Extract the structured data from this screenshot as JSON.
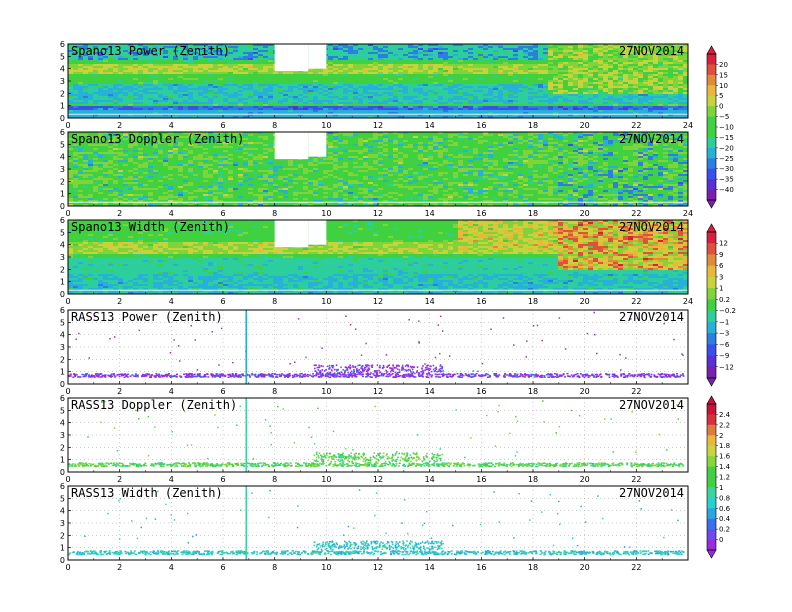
{
  "page": {
    "date": "27NOV2014"
  },
  "colors": {
    "background": "#ffffff",
    "panel_base": "#3fd13f",
    "spano_palette": [
      "#7a1fb0",
      "#5a2fd8",
      "#3b4ff0",
      "#2a7fe0",
      "#27b0d8",
      "#2ccf9c",
      "#3fd13f",
      "#7fd43a",
      "#c8d23a",
      "#e8b83a",
      "#e08a3a",
      "#e0503a",
      "#d8203a"
    ],
    "rass_palette": [
      "#9a2ae0",
      "#6a4bf0",
      "#3b6ff0",
      "#27a8e0",
      "#2acfcf",
      "#3ad59a",
      "#3fd13f",
      "#86d63a",
      "#cbd43a",
      "#e8b83a",
      "#e07a3a",
      "#d8303a",
      "#c8103a"
    ]
  },
  "chart_data": [
    {
      "type": "heatmap",
      "title": "Spano13 Power (Zenith)",
      "date_label": "27NOV2014",
      "x_ticks": [
        "0",
        "2",
        "4",
        "6",
        "8",
        "10",
        "12",
        "14",
        "16",
        "18",
        "20",
        "22",
        "24"
      ],
      "y_ticks": [
        "0",
        "1",
        "2",
        "3",
        "4",
        "5",
        "6"
      ],
      "xlim": [
        0,
        24
      ],
      "ylim": [
        0,
        6
      ],
      "gaps": [
        {
          "x0": 8.0,
          "x1": 9.3,
          "y0": 3.8,
          "y1": 6.0
        },
        {
          "x0": 9.3,
          "x1": 10.0,
          "y0": 4.0,
          "y1": 6.0
        }
      ]
    },
    {
      "type": "heatmap",
      "title": "Spano13 Doppler (Zenith)",
      "date_label": "27NOV2014",
      "x_ticks": [
        "0",
        "2",
        "4",
        "6",
        "8",
        "10",
        "12",
        "14",
        "16",
        "18",
        "20",
        "22",
        "24"
      ],
      "y_ticks": [
        "0",
        "1",
        "2",
        "3",
        "4",
        "5",
        "6"
      ],
      "xlim": [
        0,
        24
      ],
      "ylim": [
        0,
        6
      ],
      "gaps": [
        {
          "x0": 8.0,
          "x1": 9.3,
          "y0": 3.8,
          "y1": 6.0
        },
        {
          "x0": 9.3,
          "x1": 10.0,
          "y0": 4.0,
          "y1": 6.0
        }
      ]
    },
    {
      "type": "heatmap",
      "title": "Spano13 Width (Zenith)",
      "date_label": "27NOV2014",
      "x_ticks": [
        "0",
        "2",
        "4",
        "6",
        "8",
        "10",
        "12",
        "14",
        "16",
        "18",
        "20",
        "22",
        "24"
      ],
      "y_ticks": [
        "0",
        "1",
        "2",
        "3",
        "4",
        "5",
        "6"
      ],
      "xlim": [
        0,
        24
      ],
      "ylim": [
        0,
        6
      ],
      "gaps": [
        {
          "x0": 8.0,
          "x1": 9.3,
          "y0": 3.8,
          "y1": 6.0
        },
        {
          "x0": 9.3,
          "x1": 10.0,
          "y0": 4.0,
          "y1": 6.0
        }
      ]
    },
    {
      "type": "scatter",
      "title": "RASS13 Power (Zenith)",
      "date_label": "27NOV2014",
      "x_ticks": [
        "0",
        "2",
        "4",
        "6",
        "8",
        "10",
        "12",
        "14",
        "16",
        "18",
        "20",
        "22"
      ],
      "y_ticks": [
        "0",
        "1",
        "2",
        "3",
        "4",
        "5",
        "6"
      ],
      "xlim": [
        0,
        24
      ],
      "ylim": [
        0,
        6
      ],
      "band_height": [
        0.6,
        0.9
      ],
      "spike_x": 6.9
    },
    {
      "type": "scatter",
      "title": "RASS13 Doppler (Zenith)",
      "date_label": "27NOV2014",
      "x_ticks": [
        "0",
        "2",
        "4",
        "6",
        "8",
        "10",
        "12",
        "14",
        "16",
        "18",
        "20",
        "22"
      ],
      "y_ticks": [
        "0",
        "1",
        "2",
        "3",
        "4",
        "5",
        "6"
      ],
      "xlim": [
        0,
        24
      ],
      "ylim": [
        0,
        6
      ],
      "band_height": [
        0.5,
        0.8
      ],
      "spike_x": 6.9
    },
    {
      "type": "scatter",
      "title": "RASS13 Width (Zenith)",
      "date_label": "27NOV2014",
      "x_ticks": [
        "0",
        "2",
        "4",
        "6",
        "8",
        "10",
        "12",
        "14",
        "16",
        "18",
        "20",
        "22"
      ],
      "y_ticks": [
        "0",
        "1",
        "2",
        "3",
        "4",
        "5",
        "6"
      ],
      "xlim": [
        0,
        24
      ],
      "ylim": [
        0,
        6
      ],
      "band_height": [
        0.5,
        0.8
      ],
      "spike_x": 6.9
    }
  ],
  "colorbars": [
    {
      "name": "spano-colorbar",
      "labels": [
        "20",
        "15",
        "10",
        "5",
        "0",
        "−5",
        "−10",
        "−15",
        "−20",
        "−25",
        "−30",
        "−35",
        "−40"
      ]
    },
    {
      "name": "spano-width-colorbar",
      "labels": [
        "12",
        "9",
        "6",
        "3",
        "1",
        "0.2",
        "−0.2",
        "−1",
        "−3",
        "−6",
        "−9",
        "−12"
      ]
    },
    {
      "name": "rass-colorbar",
      "labels": [
        "2.4",
        "2.2",
        "2",
        "1.8",
        "1.6",
        "1.4",
        "1.2",
        "1",
        "0.8",
        "0.6",
        "0.4",
        "0.2",
        "0"
      ]
    }
  ]
}
